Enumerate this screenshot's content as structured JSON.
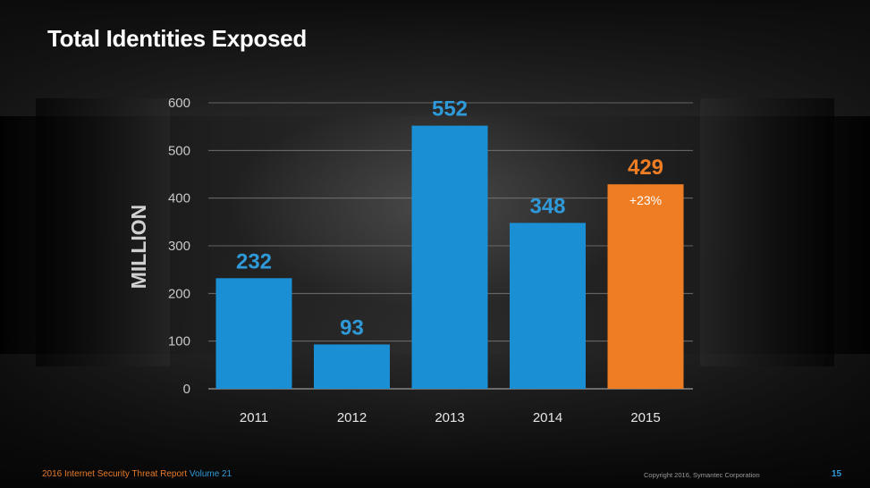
{
  "slide": {
    "title": "Total Identities Exposed",
    "footer": {
      "report": "2016 Internet Security Threat Report",
      "volume": "Volume 21",
      "copyright": "Copyright 2016, Symantec Corporation",
      "page": "15"
    }
  },
  "colors": {
    "bar": "#1b8fd3",
    "highlight_bar": "#ee7d23",
    "label_blue": "#2f9ad9",
    "label_orange": "#ee7d23",
    "axis_text": "#c8c8c8",
    "ylabel": "#d0d0d0"
  },
  "chart_data": {
    "type": "bar",
    "title": "Total Identities Exposed",
    "xlabel": "",
    "ylabel": "MILLION",
    "categories": [
      "2011",
      "2012",
      "2013",
      "2014",
      "2015"
    ],
    "values": [
      232,
      93,
      552,
      348,
      429
    ],
    "data_labels": [
      "232",
      "93",
      "552",
      "348",
      "429"
    ],
    "highlight_index": 4,
    "annotation": "+23%",
    "ylim": [
      0,
      600
    ],
    "yticks": [
      0,
      100,
      200,
      300,
      400,
      500,
      600
    ],
    "grid": true,
    "legend": "none"
  }
}
